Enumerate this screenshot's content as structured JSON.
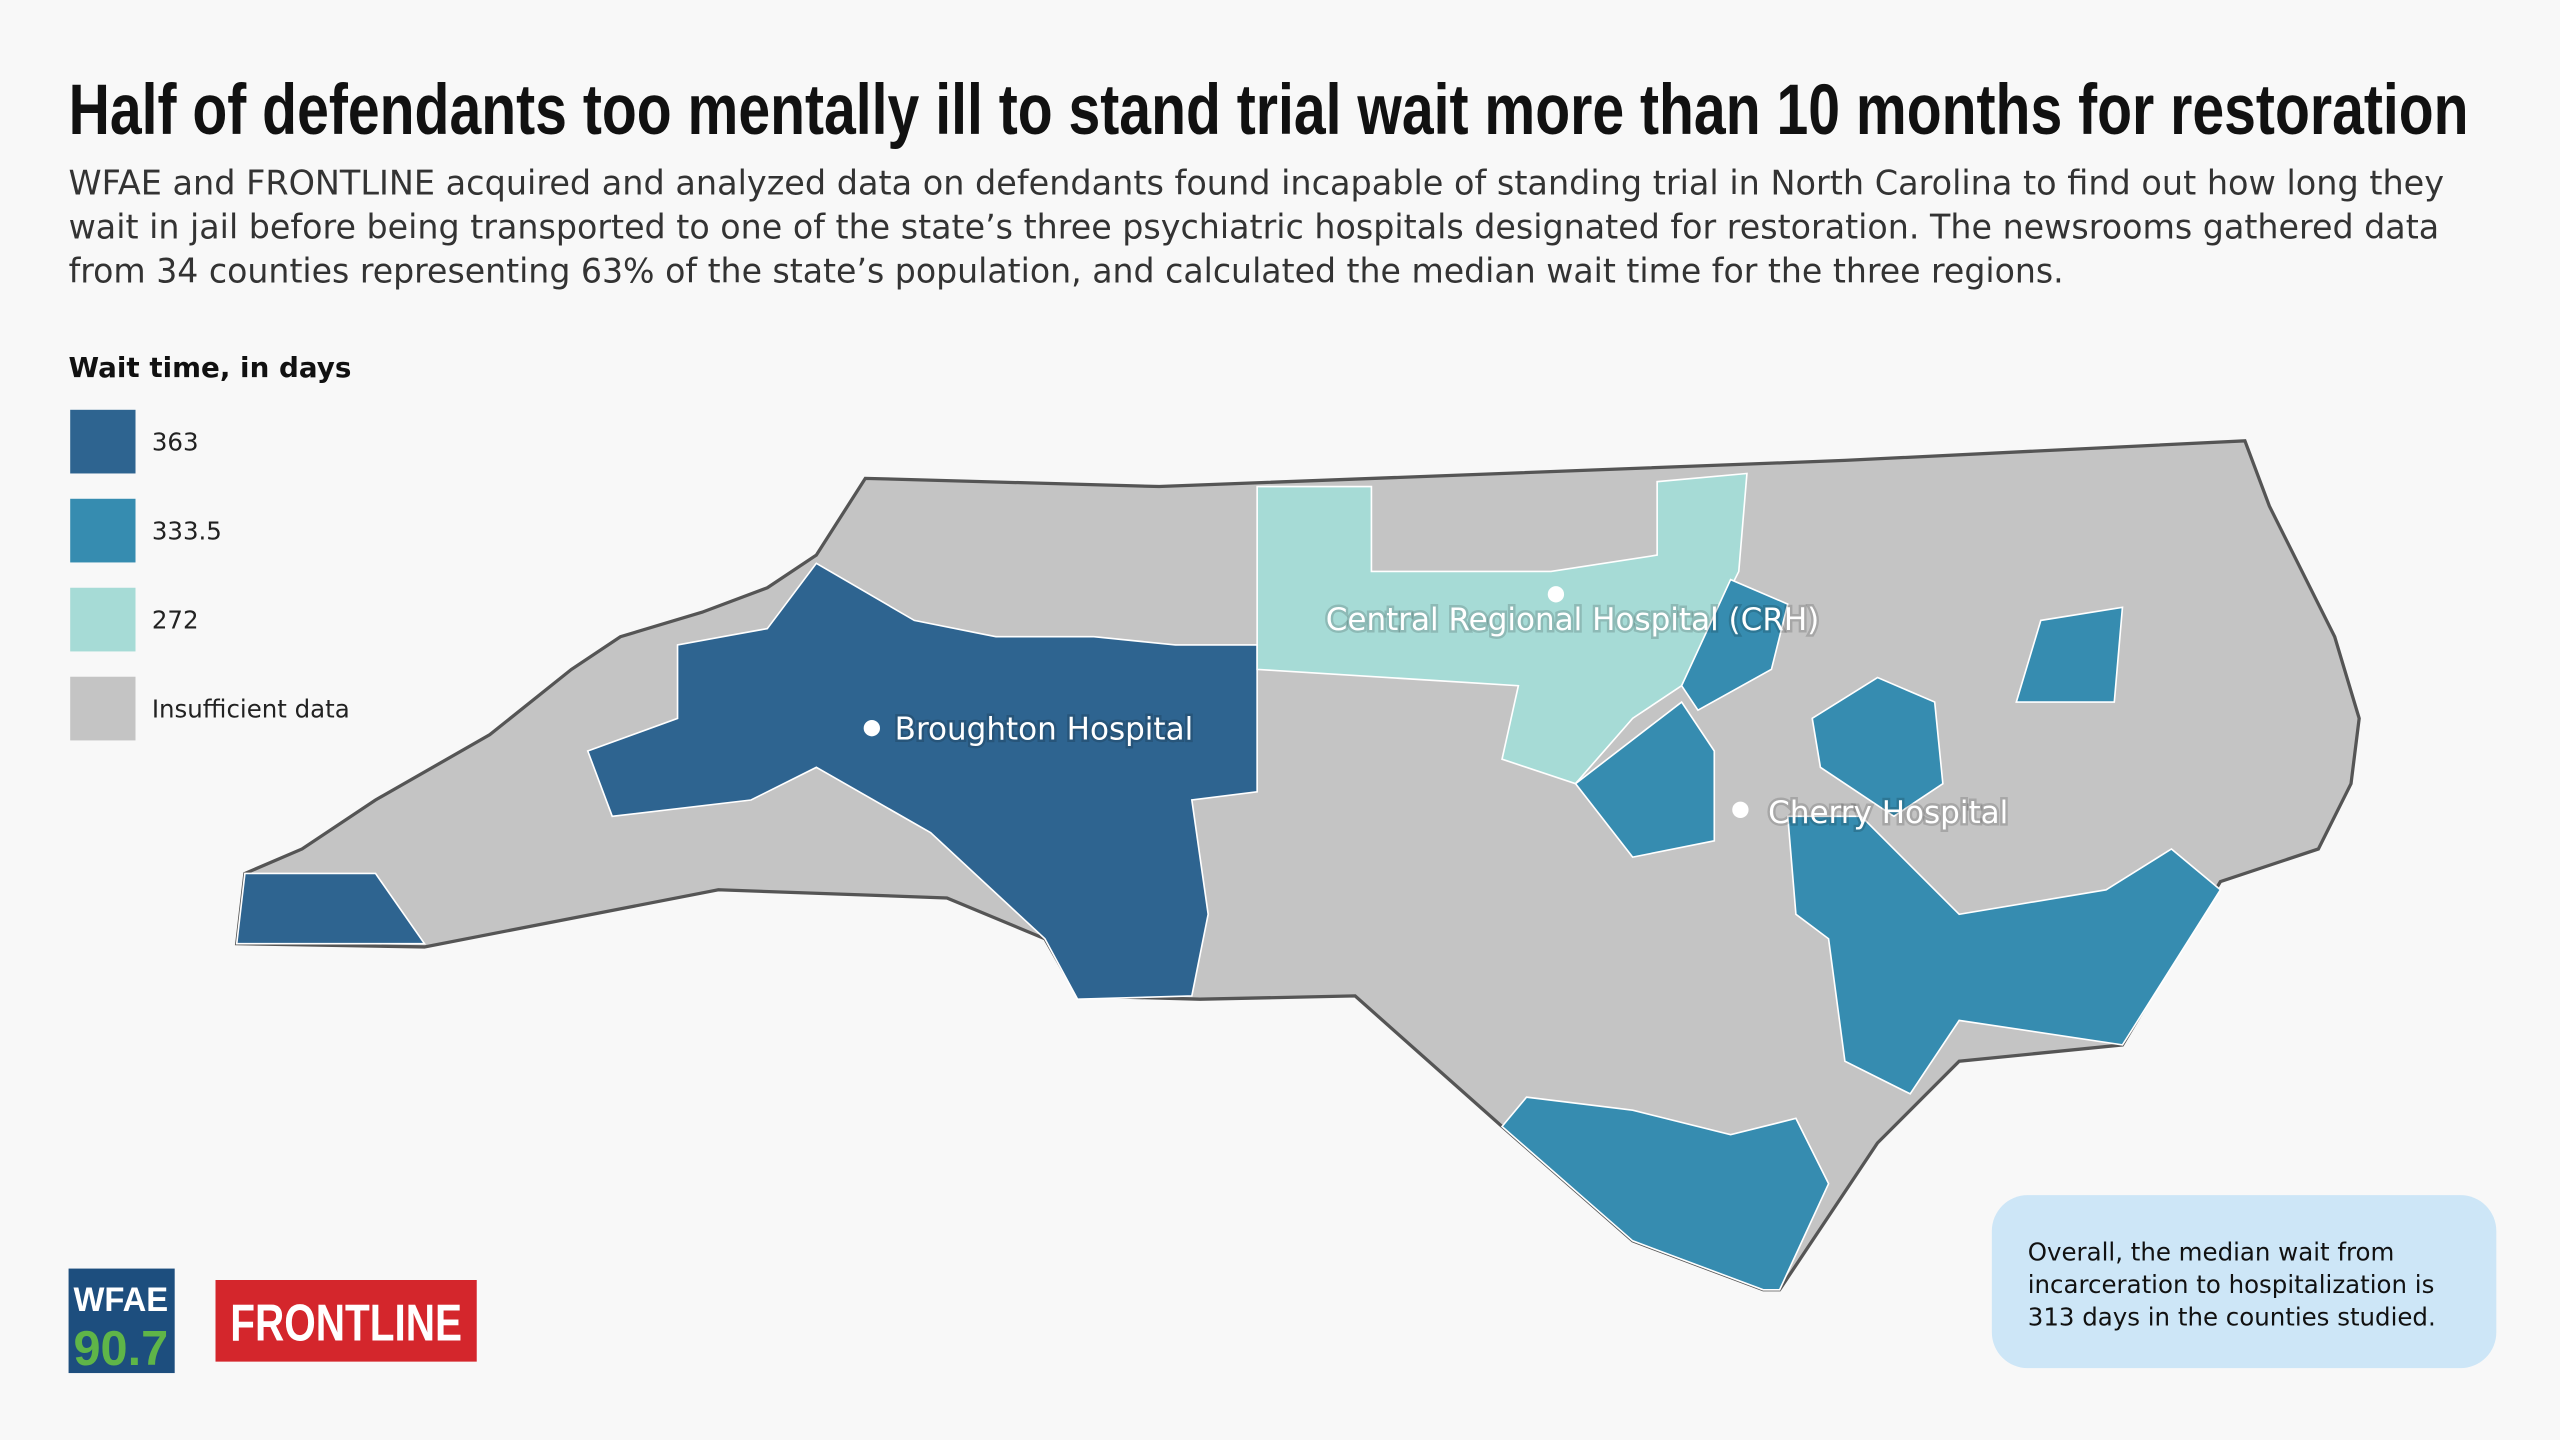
{
  "header": {
    "title": "Half of defendants too mentally ill to stand trial wait more than 10 months for restoration",
    "subtitle": [
      "WFAE and FRONTLINE acquired and analyzed data on defendants found incapable of standing trial in North Carolina to find out how long they",
      "wait in jail before being transported to one of the state’s three psychiatric hospitals designated for restoration. The newsrooms gathered data",
      "from 34 counties representing 63% of the state’s population, and calculated the median wait time for the three regions."
    ]
  },
  "legend": {
    "title": "Wait time, in days",
    "items": [
      {
        "label": 363,
        "color": "#2e6490"
      },
      {
        "label": 333.5,
        "color": "#368cb0"
      },
      {
        "label": 272,
        "color": "#a6dbd6"
      },
      {
        "label": "Insufficient data",
        "color": "#c4c4c4"
      }
    ]
  },
  "map": {
    "hospitals": [
      {
        "label": "Broughton Hospital"
      },
      {
        "label": "Central Regional Hospital (CRH)"
      },
      {
        "label": "Cherry Hospital"
      }
    ]
  },
  "note": {
    "lines": [
      "Overall, the median wait from",
      "incarceration to hospitalization is",
      "313 days in the counties studied."
    ]
  },
  "logos": {
    "wfae": "WFAE",
    "frequency": "90.7",
    "frontline": "FRONTLINE"
  }
}
